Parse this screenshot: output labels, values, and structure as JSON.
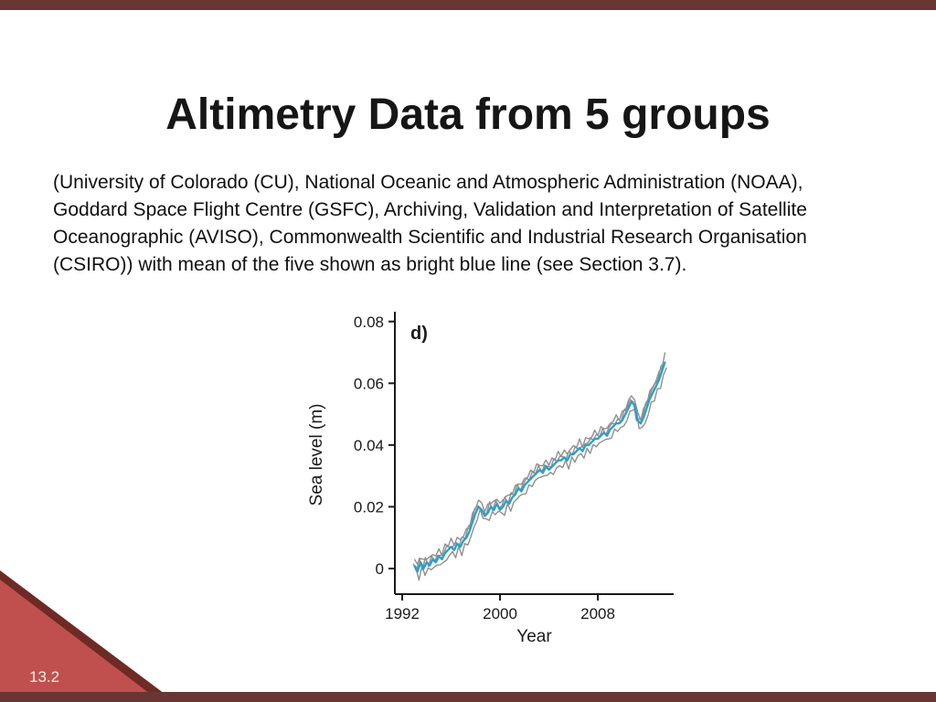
{
  "slide": {
    "title": "Altimetry Data from 5 groups",
    "body": "(University of Colorado (CU), National Oceanic and Atmospheric Administration (NOAA), Goddard Space Flight Centre (GSFC), Archiving, Validation and Interpretation of Satellite Oceanographic (AVISO), Commonwealth Scientific and Industrial Research Organisation (CSIRO)) with mean of the five shown as bright blue line (see Section 3.7).",
    "slide_number": "13.2",
    "colors": {
      "edge_bar": "#693634",
      "corner_triangle": "#c0504d",
      "corner_triangle_dark": "#6e2a24",
      "mean_line": "#2f9fc7",
      "ensemble_line": "#8f8f8f"
    }
  },
  "chart_data": {
    "type": "line",
    "panel_label": "d)",
    "xlabel": "Year",
    "ylabel": "Sea level (m)",
    "x_ticks": [
      "1992",
      "2000",
      "2008"
    ],
    "y_ticks": [
      "0",
      "0.02",
      "0.04",
      "0.06",
      "0.08"
    ],
    "xlim": [
      1991.4,
      2014.2
    ],
    "ylim": [
      -0.0083,
      0.082
    ],
    "grid": false,
    "legend": "none",
    "groups": [
      "CU",
      "NOAA",
      "GSFC",
      "AVISO",
      "CSIRO"
    ],
    "ensemble_spread": 0.002,
    "series": [
      {
        "name": "Mean of 5 altimetry groups (bright blue)",
        "color": "#2f9fc7",
        "points": [
          [
            1993.0,
            0.001
          ],
          [
            1993.25,
            -0.001
          ],
          [
            1993.5,
            0.002
          ],
          [
            1993.75,
            0.0
          ],
          [
            1994.0,
            0.002
          ],
          [
            1994.25,
            0.001
          ],
          [
            1994.5,
            0.003
          ],
          [
            1994.75,
            0.002
          ],
          [
            1995.0,
            0.004
          ],
          [
            1995.25,
            0.003
          ],
          [
            1995.5,
            0.005
          ],
          [
            1995.75,
            0.006
          ],
          [
            1996.0,
            0.007
          ],
          [
            1996.25,
            0.006
          ],
          [
            1996.5,
            0.008
          ],
          [
            1996.75,
            0.007
          ],
          [
            1997.0,
            0.009
          ],
          [
            1997.25,
            0.01
          ],
          [
            1997.5,
            0.012
          ],
          [
            1997.75,
            0.015
          ],
          [
            1998.0,
            0.018
          ],
          [
            1998.25,
            0.02
          ],
          [
            1998.5,
            0.019
          ],
          [
            1998.75,
            0.017
          ],
          [
            1999.0,
            0.018
          ],
          [
            1999.25,
            0.02
          ],
          [
            1999.5,
            0.019
          ],
          [
            1999.75,
            0.021
          ],
          [
            2000.0,
            0.019
          ],
          [
            2000.25,
            0.02
          ],
          [
            2000.5,
            0.022
          ],
          [
            2000.75,
            0.021
          ],
          [
            2001.0,
            0.023
          ],
          [
            2001.25,
            0.024
          ],
          [
            2001.5,
            0.026
          ],
          [
            2001.75,
            0.025
          ],
          [
            2002.0,
            0.027
          ],
          [
            2002.25,
            0.028
          ],
          [
            2002.5,
            0.029
          ],
          [
            2002.75,
            0.03
          ],
          [
            2003.0,
            0.031
          ],
          [
            2003.25,
            0.032
          ],
          [
            2003.5,
            0.031
          ],
          [
            2003.75,
            0.033
          ],
          [
            2004.0,
            0.032
          ],
          [
            2004.25,
            0.033
          ],
          [
            2004.5,
            0.034
          ],
          [
            2004.75,
            0.035
          ],
          [
            2005.0,
            0.035
          ],
          [
            2005.25,
            0.036
          ],
          [
            2005.5,
            0.035
          ],
          [
            2005.75,
            0.037
          ],
          [
            2006.0,
            0.037
          ],
          [
            2006.25,
            0.038
          ],
          [
            2006.5,
            0.039
          ],
          [
            2006.75,
            0.038
          ],
          [
            2007.0,
            0.04
          ],
          [
            2007.25,
            0.04
          ],
          [
            2007.5,
            0.041
          ],
          [
            2007.75,
            0.042
          ],
          [
            2008.0,
            0.042
          ],
          [
            2008.25,
            0.043
          ],
          [
            2008.5,
            0.044
          ],
          [
            2008.75,
            0.043
          ],
          [
            2009.0,
            0.045
          ],
          [
            2009.25,
            0.046
          ],
          [
            2009.5,
            0.047
          ],
          [
            2009.75,
            0.047
          ],
          [
            2010.0,
            0.048
          ],
          [
            2010.25,
            0.05
          ],
          [
            2010.5,
            0.052
          ],
          [
            2010.75,
            0.054
          ],
          [
            2011.0,
            0.053
          ],
          [
            2011.25,
            0.048
          ],
          [
            2011.5,
            0.047
          ],
          [
            2011.75,
            0.049
          ],
          [
            2012.0,
            0.052
          ],
          [
            2012.25,
            0.055
          ],
          [
            2012.5,
            0.057
          ],
          [
            2012.75,
            0.059
          ],
          [
            2013.0,
            0.061
          ],
          [
            2013.25,
            0.064
          ],
          [
            2013.5,
            0.067
          ]
        ]
      }
    ]
  }
}
